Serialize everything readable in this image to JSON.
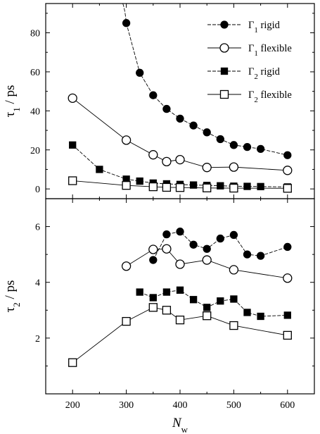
{
  "chart_data": [
    {
      "type": "line",
      "panel": "top",
      "ylabel": "τ1 / ps",
      "ylabel_main": "τ",
      "ylabel_sub": "1",
      "ylabel_rest": " / ps",
      "ylim": [
        -5,
        95
      ],
      "yticks": [
        0,
        20,
        40,
        60,
        80
      ],
      "xlim": [
        150,
        650
      ],
      "grid": false,
      "legend_position": "top-right",
      "series": [
        {
          "name": "Γ1 rigid",
          "name_main": "Γ",
          "name_sub": "1",
          "name_rest": " rigid",
          "marker": "filled-circle",
          "dashed": true,
          "x": [
            300,
            325,
            350,
            375,
            400,
            425,
            450,
            475,
            500,
            525,
            550,
            600
          ],
          "y": [
            85,
            59.5,
            48,
            41,
            36,
            32.5,
            29,
            25.5,
            22.5,
            21.5,
            20.5,
            17.3
          ],
          "leading_curve_to_top": true
        },
        {
          "name": "Γ1 flexible",
          "name_main": "Γ",
          "name_sub": "1",
          "name_rest": " flexible",
          "marker": "open-circle",
          "dashed": false,
          "x": [
            200,
            300,
            350,
            375,
            400,
            450,
            500,
            600
          ],
          "y": [
            46.5,
            25,
            17.5,
            14,
            15,
            11,
            11.2,
            9.5
          ]
        },
        {
          "name": "Γ2 rigid",
          "name_main": "Γ",
          "name_sub": "2",
          "name_rest": " rigid",
          "marker": "filled-square",
          "dashed": true,
          "x": [
            200,
            250,
            300,
            325,
            350,
            375,
            400,
            425,
            450,
            475,
            500,
            525,
            550,
            600
          ],
          "y": [
            22.5,
            10,
            5,
            4,
            3,
            2.6,
            2.3,
            2,
            1.8,
            1.6,
            1.4,
            1.3,
            1.2,
            1
          ]
        },
        {
          "name": "Γ2 flexible",
          "name_main": "Γ",
          "name_sub": "2",
          "name_rest": " flexible",
          "marker": "open-square",
          "dashed": false,
          "x": [
            200,
            300,
            350,
            375,
            400,
            450,
            500,
            600
          ],
          "y": [
            4.2,
            1.8,
            1.1,
            0.8,
            0.7,
            0.5,
            0.4,
            0.3
          ]
        }
      ]
    },
    {
      "type": "line",
      "panel": "bottom",
      "ylabel": "τ2 / ps",
      "ylabel_main": "τ",
      "ylabel_sub": "2",
      "ylabel_rest": " / ps",
      "xlabel": "Nw",
      "xlabel_main": "N",
      "xlabel_sub": "w",
      "ylim": [
        0,
        7
      ],
      "yticks": [
        2,
        4,
        6
      ],
      "xlim": [
        150,
        650
      ],
      "xticks": [
        200,
        300,
        400,
        500,
        600
      ],
      "grid": false,
      "series": [
        {
          "name": "Γ1 rigid",
          "marker": "filled-circle",
          "dashed": true,
          "x": [
            350,
            375,
            400,
            425,
            450,
            475,
            500,
            525,
            550,
            600
          ],
          "y": [
            4.8,
            5.72,
            5.82,
            5.35,
            5.2,
            5.57,
            5.7,
            5.0,
            4.95,
            5.27
          ]
        },
        {
          "name": "Γ1 flexible",
          "marker": "open-circle",
          "dashed": false,
          "x": [
            300,
            350,
            375,
            400,
            450,
            500,
            600
          ],
          "y": [
            4.58,
            5.18,
            5.2,
            4.65,
            4.8,
            4.45,
            4.15
          ]
        },
        {
          "name": "Γ2 rigid",
          "marker": "filled-square",
          "dashed": true,
          "x": [
            325,
            350,
            375,
            400,
            425,
            450,
            475,
            500,
            525,
            550,
            600
          ],
          "y": [
            3.65,
            3.45,
            3.65,
            3.72,
            3.38,
            3.1,
            3.33,
            3.4,
            2.92,
            2.78,
            2.82
          ]
        },
        {
          "name": "Γ2 flexible",
          "marker": "open-square",
          "dashed": false,
          "x": [
            200,
            300,
            350,
            375,
            400,
            450,
            500,
            600
          ],
          "y": [
            1.12,
            2.6,
            3.1,
            3.0,
            2.65,
            2.8,
            2.45,
            2.1
          ]
        }
      ]
    }
  ]
}
